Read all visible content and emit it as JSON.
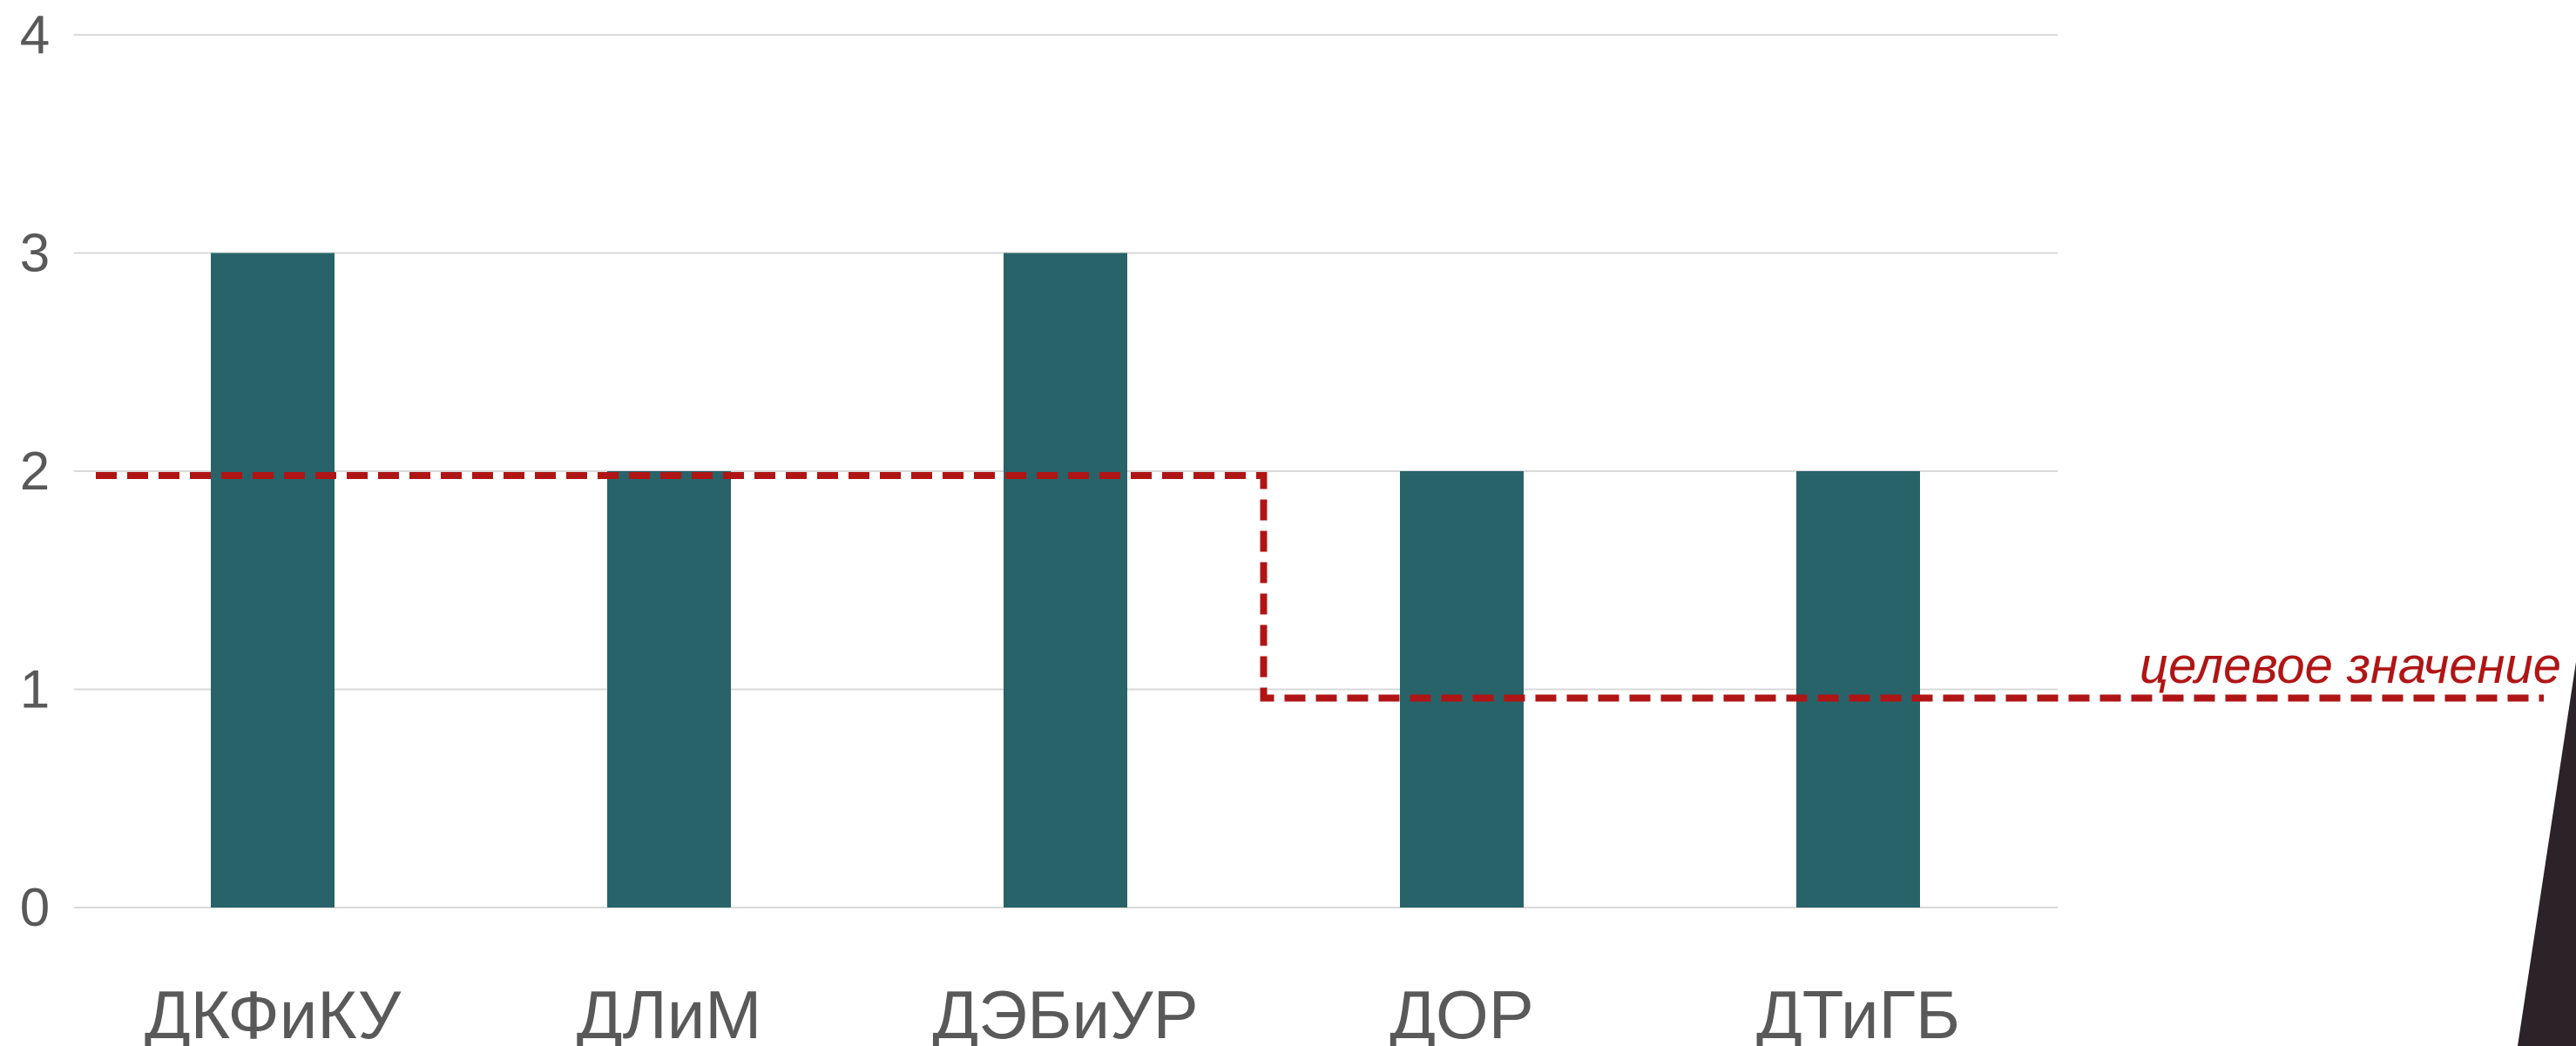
{
  "chart_data": {
    "type": "bar",
    "categories": [
      "ДКФиКУ",
      "ДЛиМ",
      "ДЭБиУР",
      "ДОР",
      "ДТиГБ"
    ],
    "values": [
      3,
      2,
      3,
      2,
      2
    ],
    "ylim": [
      0,
      4
    ],
    "yticks": [
      0,
      1,
      2,
      3,
      4
    ],
    "grid": true,
    "bar_color": "#276368",
    "target": {
      "label": "целевое значение",
      "color": "#b01515",
      "style": "dashed-step",
      "values": [
        2,
        2,
        2,
        1,
        1
      ]
    }
  }
}
